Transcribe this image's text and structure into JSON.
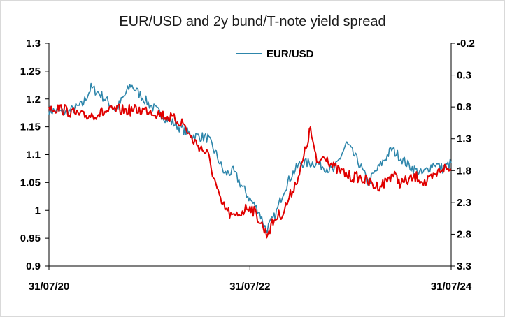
{
  "chart_data": {
    "type": "line",
    "title": "EUR/USD and 2y bund/T-note yield spread",
    "x_tick_labels": [
      "31/07/20",
      "31/07/22",
      "31/07/24"
    ],
    "y_left": {
      "min": 0.9,
      "max": 1.3,
      "step": 0.05,
      "tick_labels": [
        "1.3",
        "1.25",
        "1.2",
        "1.15",
        "1.1",
        "1.05",
        "1",
        "0.95",
        "0.9"
      ]
    },
    "y_right": {
      "min": -0.2,
      "max": 3.3,
      "inverted": true,
      "tick_labels": [
        "-0.2",
        "0.3",
        "0.8",
        "1.3",
        "1.8",
        "2.3",
        "2.8",
        "3.3"
      ]
    },
    "legend": {
      "position": "top-center",
      "entries": [
        "EUR/USD"
      ]
    },
    "grid": false,
    "series": [
      {
        "name": "EUR/USD",
        "axis": "left",
        "color": "#2e86ab",
        "x": [
          "2020-07-31",
          "2020-09-30",
          "2020-11-30",
          "2020-12-31",
          "2021-01-31",
          "2021-03-31",
          "2021-05-25",
          "2021-07-31",
          "2021-09-30",
          "2021-10-31",
          "2021-12-31",
          "2022-02-28",
          "2022-03-31",
          "2022-04-30",
          "2022-05-31",
          "2022-06-30",
          "2022-07-31",
          "2022-08-31",
          "2022-09-28",
          "2022-10-31",
          "2022-11-30",
          "2022-12-31",
          "2023-01-31",
          "2023-03-31",
          "2023-05-31",
          "2023-07-18",
          "2023-08-31",
          "2023-10-03",
          "2023-11-30",
          "2023-12-28",
          "2024-02-29",
          "2024-04-16",
          "2024-05-31",
          "2024-06-30",
          "2024-07-31"
        ],
        "y": [
          1.18,
          1.175,
          1.19,
          1.22,
          1.21,
          1.18,
          1.225,
          1.19,
          1.165,
          1.155,
          1.135,
          1.13,
          1.1,
          1.065,
          1.07,
          1.045,
          1.02,
          1.0,
          0.965,
          0.99,
          1.035,
          1.065,
          1.085,
          1.085,
          1.07,
          1.12,
          1.085,
          1.05,
          1.09,
          1.11,
          1.08,
          1.065,
          1.085,
          1.075,
          1.085
        ]
      },
      {
        "axis": "right",
        "color": "#e00000",
        "x": [
          "2020-07-31",
          "2020-09-30",
          "2020-11-30",
          "2021-01-31",
          "2021-03-31",
          "2021-05-31",
          "2021-07-31",
          "2021-09-30",
          "2021-11-30",
          "2021-12-31",
          "2022-02-28",
          "2022-04-15",
          "2022-05-31",
          "2022-06-30",
          "2022-07-31",
          "2022-08-31",
          "2022-09-30",
          "2022-10-31",
          "2022-11-30",
          "2023-01-31",
          "2023-03-08",
          "2023-03-31",
          "2023-04-30",
          "2023-05-31",
          "2023-07-31",
          "2023-08-31",
          "2023-10-31",
          "2023-11-30",
          "2023-12-31",
          "2024-01-31",
          "2024-03-31",
          "2024-04-30",
          "2024-05-31",
          "2024-06-30",
          "2024-07-31"
        ],
        "y": [
          0.8,
          0.85,
          0.95,
          0.9,
          0.85,
          0.85,
          0.85,
          0.95,
          1.05,
          1.3,
          1.55,
          2.3,
          2.55,
          2.45,
          2.35,
          2.55,
          2.8,
          2.55,
          2.45,
          1.8,
          1.15,
          1.7,
          1.55,
          1.75,
          1.9,
          1.9,
          2.05,
          2.0,
          1.85,
          2.0,
          1.9,
          2.0,
          1.9,
          1.75,
          1.8
        ]
      }
    ]
  }
}
